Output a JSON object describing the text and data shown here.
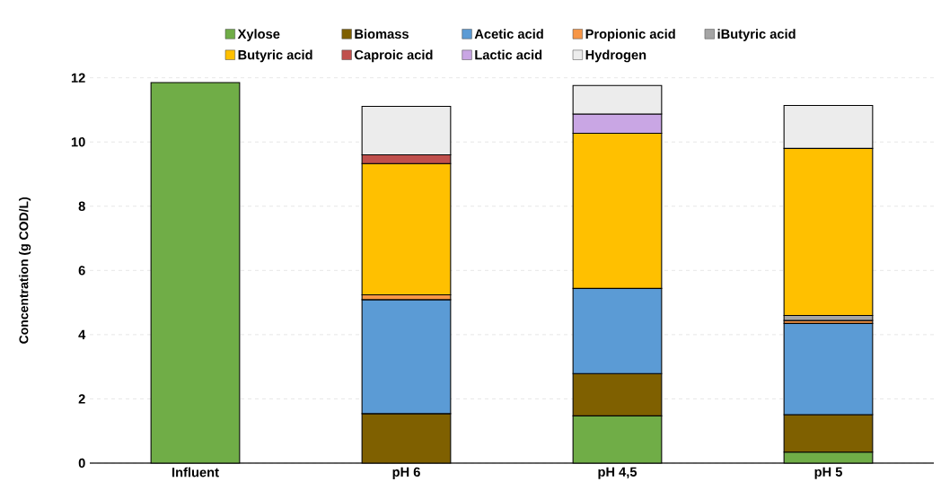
{
  "chart_data": {
    "type": "bar",
    "stacked": true,
    "ylabel": "Concentration (g COD/L)",
    "categories": [
      "Influent",
      "pH 6",
      "pH 4,5",
      "pH 5"
    ],
    "series": [
      {
        "name": "Xylose",
        "color": "#70ad47",
        "values": [
          11.85,
          null,
          1.47,
          0.34
        ]
      },
      {
        "name": "Biomass",
        "color": "#7f6000",
        "values": [
          null,
          1.54,
          1.32,
          1.17
        ]
      },
      {
        "name": "Acetic acid",
        "color": "#5b9bd5",
        "values": [
          null,
          3.55,
          2.65,
          2.84
        ]
      },
      {
        "name": "Propionic acid",
        "color": "#f79646",
        "values": [
          null,
          0.15,
          null,
          0.09
        ]
      },
      {
        "name": "iButyric acid",
        "color": "#a5a5a5",
        "values": [
          null,
          null,
          null,
          0.16
        ]
      },
      {
        "name": "Butyric acid",
        "color": "#ffc000",
        "values": [
          null,
          4.09,
          4.83,
          5.2
        ]
      },
      {
        "name": "Caproic acid",
        "color": "#c0504d",
        "values": [
          null,
          0.27,
          null,
          null
        ]
      },
      {
        "name": "Lactic acid",
        "color": "#c9a6e4",
        "values": [
          null,
          null,
          0.6,
          null
        ]
      },
      {
        "name": "Hydrogen",
        "color": "#ececec",
        "values": [
          null,
          1.51,
          0.89,
          1.34
        ]
      }
    ],
    "ylim": [
      0,
      12
    ],
    "yticks": [
      0,
      2,
      4,
      6,
      8,
      10,
      12
    ],
    "grid": "y",
    "legend": "top"
  }
}
